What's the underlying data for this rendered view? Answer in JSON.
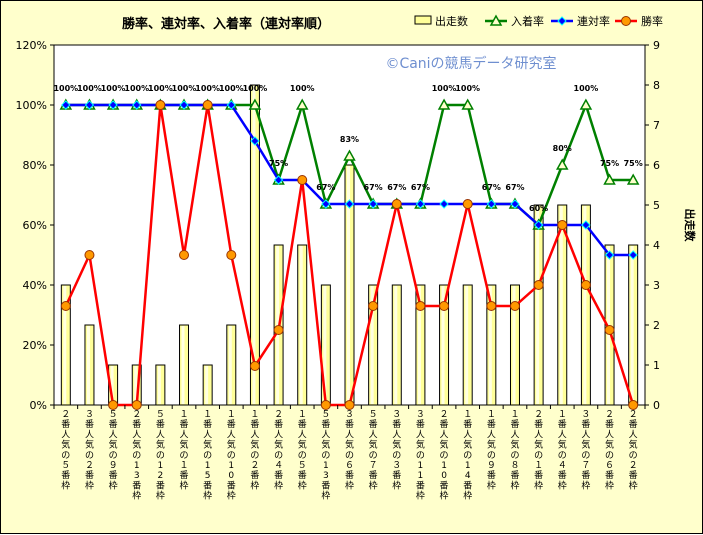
{
  "chart_data": {
    "type": "bar+line",
    "title": "勝率、連対率、入着率（連対率順）",
    "watermark": "©Caniの競馬データ研究室",
    "ylabel_right": "出走数",
    "y_left": {
      "min": 0,
      "max": 120,
      "step": 20,
      "suffix": "%"
    },
    "y_right": {
      "min": 0,
      "max": 9,
      "step": 1
    },
    "categories": [
      "２番人気の５番枠",
      "３番人気の２番枠",
      "５番人気の９番枠",
      "２番人気の13番枠",
      "５番人気の12番枠",
      "１番人気の１番枠",
      "１番人気の15番枠",
      "１番人気の10番枠",
      "１番人気の２番枠",
      "２番人気の４番枠",
      "１番人気の５番枠",
      "５番人気の13番枠",
      "３番人気の６番枠",
      "５番人気の７番枠",
      "３番人気の３番枠",
      "３番人気の11番枠",
      "２番人気の10番枠",
      "１番人気の14番枠",
      "１番人気の９番枠",
      "１番人気の８番枠",
      "２番人気の１番枠",
      "１番人気の４番枠",
      "３番人気の７番枠",
      "２番人気の６番枠",
      "２番人気の２番枠"
    ],
    "series": [
      {
        "name": "出走数",
        "kind": "bar",
        "axis": "right",
        "color": "#ffff99",
        "values": [
          3,
          2,
          1,
          1,
          1,
          2,
          1,
          2,
          8,
          4,
          4,
          3,
          6,
          3,
          3,
          3,
          3,
          3,
          3,
          3,
          5,
          5,
          5,
          4,
          4
        ]
      },
      {
        "name": "入着率",
        "kind": "line",
        "axis": "left",
        "color": "#008000",
        "marker": "triangle",
        "values": [
          100,
          100,
          100,
          100,
          100,
          100,
          100,
          100,
          100,
          75,
          100,
          67,
          83,
          67,
          67,
          67,
          100,
          100,
          67,
          67,
          60,
          80,
          100,
          75,
          75
        ]
      },
      {
        "name": "連対率",
        "kind": "line",
        "axis": "left",
        "color": "#0000ff",
        "marker": "diamond",
        "values": [
          100,
          100,
          100,
          100,
          100,
          100,
          100,
          100,
          88,
          75,
          75,
          67,
          67,
          67,
          67,
          67,
          67,
          67,
          67,
          67,
          60,
          60,
          60,
          50,
          50
        ]
      },
      {
        "name": "勝率",
        "kind": "line",
        "axis": "left",
        "color": "#ff0000",
        "marker": "circle",
        "values": [
          33,
          50,
          0,
          0,
          100,
          50,
          100,
          50,
          13,
          25,
          75,
          0,
          0,
          33,
          67,
          33,
          33,
          67,
          33,
          33,
          40,
          60,
          40,
          25,
          0
        ]
      }
    ],
    "data_labels": [
      {
        "index": 0,
        "text": "100%"
      },
      {
        "index": 1,
        "text": "100%"
      },
      {
        "index": 2,
        "text": "100%"
      },
      {
        "index": 3,
        "text": "100%"
      },
      {
        "index": 4,
        "text": "100%"
      },
      {
        "index": 5,
        "text": "100%"
      },
      {
        "index": 6,
        "text": "100%"
      },
      {
        "index": 7,
        "text": "100%"
      },
      {
        "index": 8,
        "text": "100%"
      },
      {
        "index": 9,
        "text": "75%"
      },
      {
        "index": 10,
        "text": "100%"
      },
      {
        "index": 11,
        "text": "67%"
      },
      {
        "index": 12,
        "text": "83%"
      },
      {
        "index": 13,
        "text": "67%"
      },
      {
        "index": 14,
        "text": "67%"
      },
      {
        "index": 15,
        "text": "67%"
      },
      {
        "index": 16,
        "text": "100%"
      },
      {
        "index": 17,
        "text": "100%"
      },
      {
        "index": 18,
        "text": "67%"
      },
      {
        "index": 19,
        "text": "67%"
      },
      {
        "index": 20,
        "text": "60%"
      },
      {
        "index": 21,
        "text": "80%"
      },
      {
        "index": 22,
        "text": "100%"
      },
      {
        "index": 23,
        "text": "75%"
      },
      {
        "index": 24,
        "text": "75%"
      }
    ],
    "legend_position": "top-right",
    "grid": false
  }
}
